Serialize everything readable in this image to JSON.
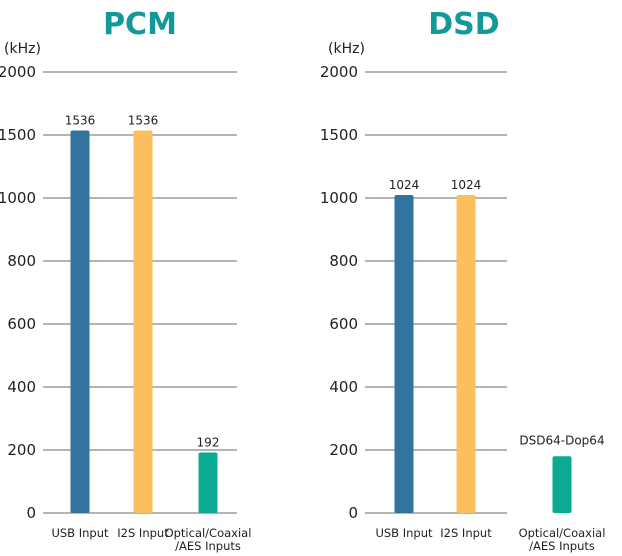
{
  "colors": {
    "title": "#13999a",
    "usb": "#33739f",
    "i2s": "#fbbf5d",
    "optical": "#0aab92",
    "grid": "#6b6b6b"
  },
  "chart_data": [
    {
      "type": "bar",
      "title": "PCM",
      "ylabel": "(kHz)",
      "yticks": [
        "2000",
        "1500",
        "1000",
        "800",
        "600",
        "400",
        "200",
        "0"
      ],
      "grid": true,
      "categories": [
        {
          "line1": "USB Input",
          "line2": ""
        },
        {
          "line1": "I2S Input",
          "line2": ""
        },
        {
          "line1": "Optical/Coaxial",
          "line2": "/AES Inputs"
        }
      ],
      "values": [
        1536,
        1536,
        192
      ],
      "data_labels": [
        "1536",
        "1536",
        "192"
      ]
    },
    {
      "type": "bar",
      "title": "DSD",
      "ylabel": "(kHz)",
      "yticks": [
        "2000",
        "1500",
        "1000",
        "800",
        "600",
        "400",
        "200",
        "0"
      ],
      "grid": true,
      "categories": [
        {
          "line1": "USB Input",
          "line2": ""
        },
        {
          "line1": "I2S Input",
          "line2": ""
        },
        {
          "line1": "Optical/Coaxial",
          "line2": "/AES Inputs"
        }
      ],
      "values": [
        1024,
        1024,
        180
      ],
      "data_labels": [
        "1024",
        "1024",
        "DSD64-Dop64"
      ]
    }
  ]
}
